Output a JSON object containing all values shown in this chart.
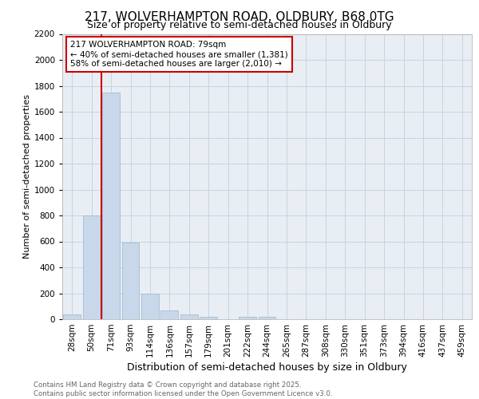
{
  "title_line1": "217, WOLVERHAMPTON ROAD, OLDBURY, B68 0TG",
  "title_line2": "Size of property relative to semi-detached houses in Oldbury",
  "xlabel": "Distribution of semi-detached houses by size in Oldbury",
  "ylabel": "Number of semi-detached properties",
  "categories": [
    "28sqm",
    "50sqm",
    "71sqm",
    "93sqm",
    "114sqm",
    "136sqm",
    "157sqm",
    "179sqm",
    "201sqm",
    "222sqm",
    "244sqm",
    "265sqm",
    "287sqm",
    "308sqm",
    "330sqm",
    "351sqm",
    "373sqm",
    "394sqm",
    "416sqm",
    "437sqm",
    "459sqm"
  ],
  "values": [
    40,
    800,
    1750,
    590,
    200,
    65,
    40,
    20,
    0,
    20,
    20,
    0,
    0,
    0,
    0,
    0,
    0,
    0,
    0,
    0,
    0
  ],
  "bar_color": "#c8d8ea",
  "bar_edge_color": "#9ab4cc",
  "grid_color": "#c8d4e0",
  "bg_color": "#e8eef4",
  "annotation_text": "217 WOLVERHAMPTON ROAD: 79sqm\n← 40% of semi-detached houses are smaller (1,381)\n58% of semi-detached houses are larger (2,010) →",
  "property_line_color": "#cc0000",
  "annotation_box_color": "#ffffff",
  "annotation_box_edge": "#cc0000",
  "ylim": [
    0,
    2200
  ],
  "yticks": [
    0,
    200,
    400,
    600,
    800,
    1000,
    1200,
    1400,
    1600,
    1800,
    2000,
    2200
  ],
  "footer_line1": "Contains HM Land Registry data © Crown copyright and database right 2025.",
  "footer_line2": "Contains public sector information licensed under the Open Government Licence v3.0.",
  "footer_color": "#666666",
  "title1_fontsize": 11,
  "title2_fontsize": 9,
  "ylabel_fontsize": 8,
  "xlabel_fontsize": 9
}
